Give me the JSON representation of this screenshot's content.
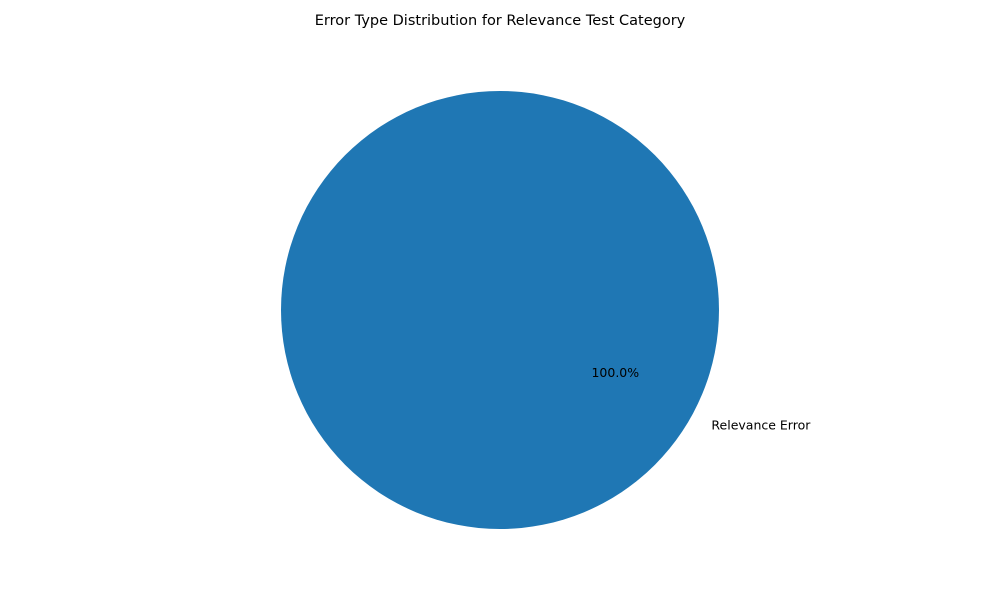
{
  "chart_data": {
    "type": "pie",
    "title": "Error Type Distribution for Relevance Test Category",
    "slices": [
      {
        "label": "Relevance Error",
        "value": 100.0,
        "pct_label": "100.0%",
        "color": "#1f77b4"
      }
    ]
  }
}
